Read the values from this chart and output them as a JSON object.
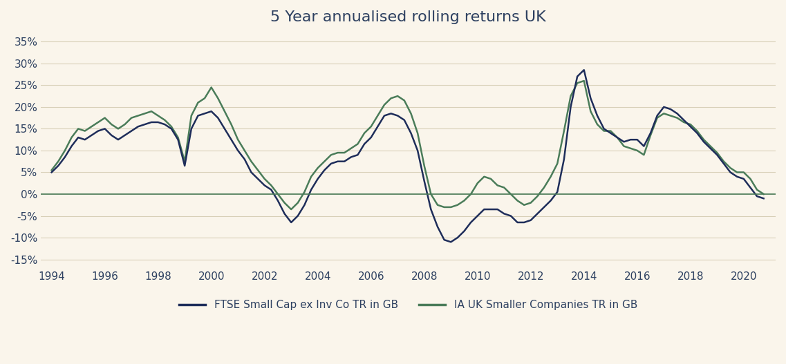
{
  "title": "5 Year annualised rolling returns UK",
  "background_color": "#faf5eb",
  "plot_bg_color": "#faf5eb",
  "grid_color": "#d8d0b8",
  "zero_line_color": "#4a7c59",
  "line1_color": "#1e2d5a",
  "line2_color": "#4a7c59",
  "line1_label": "FTSE Small Cap ex Inv Co TR in GB",
  "line2_label": "IA UK Smaller Companies TR in GB",
  "ylim": [
    -17,
    37
  ],
  "yticks": [
    -15,
    -10,
    -5,
    0,
    5,
    10,
    15,
    20,
    25,
    30,
    35
  ],
  "title_fontsize": 16,
  "tick_fontsize": 11,
  "legend_fontsize": 11,
  "line_width": 1.8,
  "series1_x": [
    1994.0,
    1994.25,
    1994.5,
    1994.75,
    1995.0,
    1995.25,
    1995.5,
    1995.75,
    1996.0,
    1996.25,
    1996.5,
    1996.75,
    1997.0,
    1997.25,
    1997.5,
    1997.75,
    1998.0,
    1998.25,
    1998.5,
    1998.75,
    1999.0,
    1999.25,
    1999.5,
    1999.75,
    2000.0,
    2000.25,
    2000.5,
    2000.75,
    2001.0,
    2001.25,
    2001.5,
    2001.75,
    2002.0,
    2002.25,
    2002.5,
    2002.75,
    2003.0,
    2003.25,
    2003.5,
    2003.75,
    2004.0,
    2004.25,
    2004.5,
    2004.75,
    2005.0,
    2005.25,
    2005.5,
    2005.75,
    2006.0,
    2006.25,
    2006.5,
    2006.75,
    2007.0,
    2007.25,
    2007.5,
    2007.75,
    2008.0,
    2008.25,
    2008.5,
    2008.75,
    2009.0,
    2009.25,
    2009.5,
    2009.75,
    2010.0,
    2010.25,
    2010.5,
    2010.75,
    2011.0,
    2011.25,
    2011.5,
    2011.75,
    2012.0,
    2012.25,
    2012.5,
    2012.75,
    2013.0,
    2013.25,
    2013.5,
    2013.75,
    2014.0,
    2014.25,
    2014.5,
    2014.75,
    2015.0,
    2015.25,
    2015.5,
    2015.75,
    2016.0,
    2016.25,
    2016.5,
    2016.75,
    2017.0,
    2017.25,
    2017.5,
    2017.75,
    2018.0,
    2018.25,
    2018.5,
    2018.75,
    2019.0,
    2019.25,
    2019.5,
    2019.75,
    2020.0,
    2020.25,
    2020.5,
    2020.75
  ],
  "series1_y": [
    5.0,
    6.5,
    8.5,
    11.0,
    13.0,
    12.5,
    13.5,
    14.5,
    15.0,
    13.5,
    12.5,
    13.5,
    14.5,
    15.5,
    16.0,
    16.5,
    16.5,
    16.0,
    15.0,
    12.5,
    6.5,
    15.0,
    18.0,
    18.5,
    19.0,
    17.5,
    15.0,
    12.5,
    10.0,
    8.0,
    5.0,
    3.5,
    2.0,
    1.0,
    -1.5,
    -4.5,
    -6.5,
    -5.0,
    -2.5,
    1.0,
    3.5,
    5.5,
    7.0,
    7.5,
    7.5,
    8.5,
    9.0,
    11.5,
    13.0,
    15.5,
    18.0,
    18.5,
    18.0,
    17.0,
    14.0,
    10.0,
    3.0,
    -3.5,
    -7.5,
    -10.5,
    -11.0,
    -10.0,
    -8.5,
    -6.5,
    -5.0,
    -3.5,
    -3.5,
    -3.5,
    -4.5,
    -5.0,
    -6.5,
    -6.5,
    -6.0,
    -4.5,
    -3.0,
    -1.5,
    0.5,
    8.0,
    20.0,
    27.0,
    28.5,
    22.0,
    18.0,
    15.0,
    14.0,
    13.0,
    12.0,
    12.5,
    12.5,
    11.0,
    14.0,
    18.0,
    20.0,
    19.5,
    18.5,
    17.0,
    15.5,
    14.0,
    12.0,
    10.5,
    9.0,
    7.0,
    5.0,
    4.0,
    3.5,
    1.5,
    -0.5,
    -1.0
  ],
  "series2_x": [
    1994.0,
    1994.25,
    1994.5,
    1994.75,
    1995.0,
    1995.25,
    1995.5,
    1995.75,
    1996.0,
    1996.25,
    1996.5,
    1996.75,
    1997.0,
    1997.25,
    1997.5,
    1997.75,
    1998.0,
    1998.25,
    1998.5,
    1998.75,
    1999.0,
    1999.25,
    1999.5,
    1999.75,
    2000.0,
    2000.25,
    2000.5,
    2000.75,
    2001.0,
    2001.25,
    2001.5,
    2001.75,
    2002.0,
    2002.25,
    2002.5,
    2002.75,
    2003.0,
    2003.25,
    2003.5,
    2003.75,
    2004.0,
    2004.25,
    2004.5,
    2004.75,
    2005.0,
    2005.25,
    2005.5,
    2005.75,
    2006.0,
    2006.25,
    2006.5,
    2006.75,
    2007.0,
    2007.25,
    2007.5,
    2007.75,
    2008.0,
    2008.25,
    2008.5,
    2008.75,
    2009.0,
    2009.25,
    2009.5,
    2009.75,
    2010.0,
    2010.25,
    2010.5,
    2010.75,
    2011.0,
    2011.25,
    2011.5,
    2011.75,
    2012.0,
    2012.25,
    2012.5,
    2012.75,
    2013.0,
    2013.25,
    2013.5,
    2013.75,
    2014.0,
    2014.25,
    2014.5,
    2014.75,
    2015.0,
    2015.25,
    2015.5,
    2015.75,
    2016.0,
    2016.25,
    2016.5,
    2016.75,
    2017.0,
    2017.25,
    2017.5,
    2017.75,
    2018.0,
    2018.25,
    2018.5,
    2018.75,
    2019.0,
    2019.25,
    2019.5,
    2019.75,
    2020.0,
    2020.25,
    2020.5,
    2020.75
  ],
  "series2_y": [
    5.5,
    7.5,
    10.0,
    13.0,
    15.0,
    14.5,
    15.5,
    16.5,
    17.5,
    16.0,
    15.0,
    16.0,
    17.5,
    18.0,
    18.5,
    19.0,
    18.0,
    17.0,
    15.5,
    13.0,
    7.5,
    18.0,
    21.0,
    22.0,
    24.5,
    22.0,
    19.0,
    16.0,
    12.5,
    10.0,
    7.5,
    5.5,
    3.5,
    2.0,
    0.0,
    -2.0,
    -3.5,
    -2.0,
    0.5,
    4.0,
    6.0,
    7.5,
    9.0,
    9.5,
    9.5,
    10.5,
    11.5,
    14.0,
    15.5,
    18.0,
    20.5,
    22.0,
    22.5,
    21.5,
    18.5,
    14.0,
    6.5,
    0.0,
    -2.5,
    -3.0,
    -3.0,
    -2.5,
    -1.5,
    0.0,
    2.5,
    4.0,
    3.5,
    2.0,
    1.5,
    0.0,
    -1.5,
    -2.5,
    -2.0,
    -0.5,
    1.5,
    4.0,
    7.0,
    14.5,
    22.5,
    25.5,
    26.0,
    19.0,
    16.0,
    14.5,
    14.5,
    13.0,
    11.0,
    10.5,
    10.0,
    9.0,
    13.5,
    17.5,
    18.5,
    18.0,
    17.5,
    16.5,
    16.0,
    14.5,
    12.5,
    11.0,
    9.5,
    7.5,
    6.0,
    5.0,
    5.0,
    3.5,
    1.0,
    0.0
  ]
}
